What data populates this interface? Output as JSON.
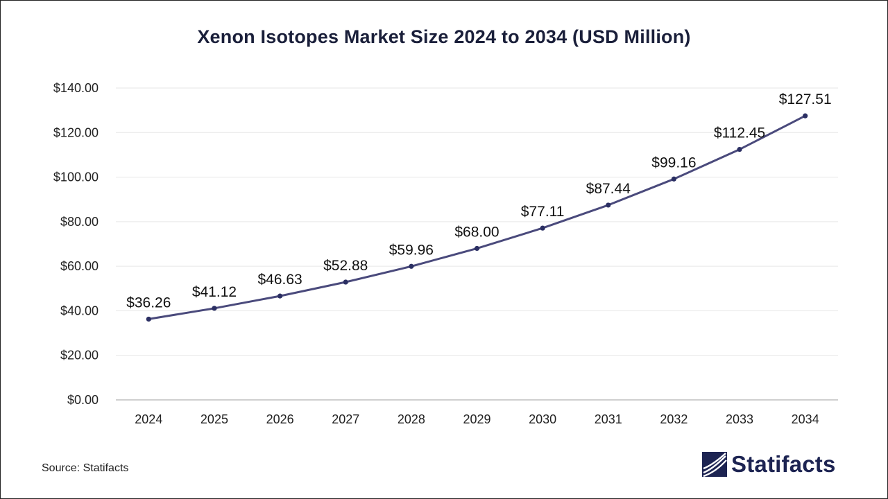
{
  "title": "Xenon Isotopes Market Size 2024 to 2034 (USD Million)",
  "source": "Source: Statifacts",
  "brand": "Statifacts",
  "colors": {
    "line": "#4a4a7c",
    "marker": "#2b2f63",
    "grid": "#e6e6e6",
    "axis": "#bfbfbf",
    "brand": "#1d2452"
  },
  "chart_data": {
    "type": "line",
    "categories": [
      "2024",
      "2025",
      "2026",
      "2027",
      "2028",
      "2029",
      "2030",
      "2031",
      "2032",
      "2033",
      "2034"
    ],
    "series": [
      {
        "values": [
          36.26,
          41.12,
          46.63,
          52.88,
          59.96,
          68.0,
          77.11,
          87.44,
          99.16,
          112.45,
          127.51
        ],
        "labels": [
          "$36.26",
          "$41.12",
          "$46.63",
          "$52.88",
          "$59.96",
          "$68.00",
          "$77.11",
          "$87.44",
          "$99.16",
          "$112.45",
          "$127.51"
        ]
      }
    ],
    "yticks": [
      0,
      20,
      40,
      60,
      80,
      100,
      120,
      140
    ],
    "ytick_labels": [
      "$0.00",
      "$20.00",
      "$40.00",
      "$60.00",
      "$80.00",
      "$100.00",
      "$120.00",
      "$140.00"
    ],
    "ylim": [
      0,
      140
    ],
    "grid": true,
    "legend": "none"
  }
}
